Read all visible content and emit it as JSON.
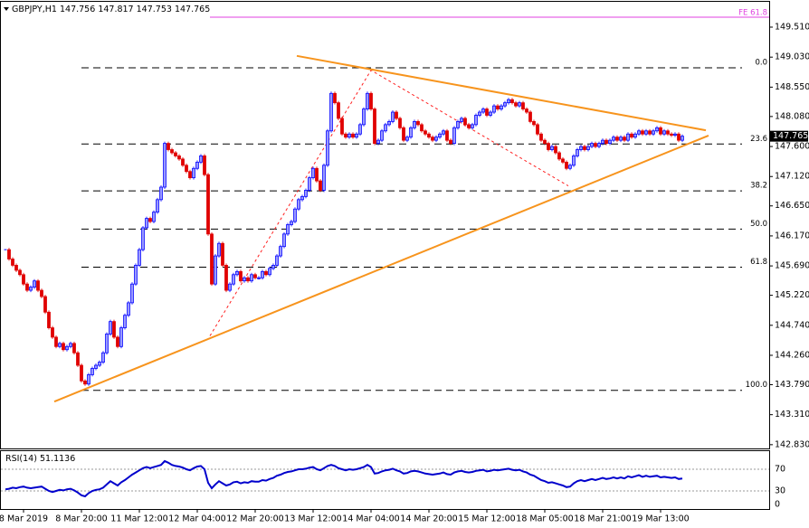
{
  "chart_data": [
    {
      "type": "candlestick",
      "symbol": "GBPJPY,H1",
      "ohlc": [
        147.756,
        147.817,
        147.753,
        147.765
      ],
      "up_color": "#0000ff",
      "down_color": "#e00000",
      "categories": [
        null,
        null,
        null,
        null,
        null,
        "8 Mar 2019",
        null,
        null,
        null,
        null,
        null,
        null,
        null,
        null,
        null,
        null,
        null,
        null,
        null,
        null,
        null,
        "8 Mar 20:00",
        null,
        null,
        null,
        null,
        null,
        null,
        null,
        null,
        null,
        null,
        null,
        null,
        null,
        null,
        null,
        "11 Mar 12:00",
        null,
        null,
        null,
        null,
        null,
        null,
        null,
        null,
        null,
        null,
        null,
        null,
        null,
        null,
        null,
        "12 Mar 04:00",
        null,
        null,
        null,
        null,
        null,
        null,
        null,
        null,
        null,
        null,
        null,
        null,
        null,
        null,
        null,
        "12 Mar 20:00",
        null,
        null,
        null,
        null,
        null,
        null,
        null,
        null,
        null,
        null,
        null,
        null,
        null,
        null,
        null,
        "13 Mar 12:00",
        null,
        null,
        null,
        null,
        null,
        null,
        null,
        null,
        null,
        null,
        null,
        null,
        null,
        null,
        null,
        "14 Mar 04:00",
        null,
        null,
        null,
        null,
        null,
        null,
        null,
        null,
        null,
        null,
        null,
        null,
        null,
        null,
        null,
        "14 Mar 20:00",
        null,
        null,
        null,
        null,
        null,
        null,
        null,
        null,
        null,
        null,
        null,
        null,
        null,
        null,
        null,
        "15 Mar 12:00",
        null,
        null,
        null,
        null,
        null,
        null,
        null,
        null,
        null,
        null,
        null,
        null,
        null,
        null,
        null,
        "18 Mar 05:00",
        null,
        null,
        null,
        null,
        null,
        null,
        null,
        null,
        null,
        null,
        null,
        null,
        null,
        null,
        null,
        "18 Mar 21:00",
        null,
        null,
        null,
        null,
        null,
        null,
        null,
        null,
        null,
        null,
        null,
        null,
        null,
        null,
        null,
        "19 Mar 13:00",
        null,
        null,
        null,
        null,
        null,
        null
      ],
      "close": [
        145.95,
        145.8,
        145.7,
        145.62,
        145.55,
        145.4,
        145.3,
        145.35,
        145.45,
        145.3,
        145.2,
        144.95,
        144.7,
        144.55,
        144.4,
        144.45,
        144.35,
        144.4,
        144.45,
        144.3,
        144.1,
        143.85,
        143.8,
        143.95,
        144.05,
        144.1,
        144.15,
        144.3,
        144.6,
        144.8,
        144.55,
        144.4,
        144.7,
        144.9,
        145.1,
        145.4,
        145.7,
        145.95,
        146.3,
        146.45,
        146.4,
        146.55,
        146.75,
        146.95,
        147.65,
        147.55,
        147.5,
        147.45,
        147.4,
        147.3,
        147.2,
        147.1,
        147.25,
        147.35,
        147.45,
        147.15,
        146.2,
        145.4,
        145.85,
        146.05,
        145.7,
        145.3,
        145.4,
        145.55,
        145.6,
        145.45,
        145.5,
        145.45,
        145.55,
        145.5,
        145.5,
        145.6,
        145.55,
        145.65,
        145.7,
        145.85,
        146.0,
        146.2,
        146.35,
        146.4,
        146.6,
        146.75,
        146.8,
        146.9,
        147.1,
        147.25,
        147.05,
        146.9,
        147.3,
        147.85,
        148.45,
        148.3,
        148.05,
        147.8,
        147.75,
        147.8,
        147.75,
        147.8,
        147.95,
        148.2,
        148.45,
        148.2,
        147.65,
        147.7,
        147.85,
        147.95,
        148.0,
        148.15,
        148.05,
        147.9,
        147.7,
        147.75,
        147.9,
        148.0,
        147.95,
        147.85,
        147.8,
        147.75,
        147.7,
        147.75,
        147.8,
        147.85,
        147.7,
        147.65,
        147.9,
        148.0,
        148.05,
        147.95,
        147.9,
        147.95,
        148.1,
        148.15,
        148.2,
        148.1,
        148.15,
        148.25,
        148.2,
        148.25,
        148.3,
        148.35,
        148.3,
        148.25,
        148.3,
        148.2,
        148.15,
        148.0,
        147.95,
        147.8,
        147.7,
        147.65,
        147.55,
        147.6,
        147.5,
        147.4,
        147.35,
        147.25,
        147.3,
        147.45,
        147.55,
        147.6,
        147.55,
        147.6,
        147.65,
        147.6,
        147.65,
        147.7,
        147.65,
        147.7,
        147.75,
        147.7,
        147.75,
        147.7,
        147.8,
        147.75,
        147.8,
        147.85,
        147.8,
        147.85,
        147.8,
        147.85,
        147.9,
        147.8,
        147.85,
        147.8,
        147.78,
        147.8,
        147.7,
        147.765
      ],
      "ylim": [
        142.77,
        149.915
      ],
      "yticks": [
        {
          "value": 149.51,
          "label": "149.510"
        },
        {
          "value": 149.03,
          "label": "149.030"
        },
        {
          "value": 148.55,
          "label": "148.550"
        },
        {
          "value": 148.08,
          "label": "148.080"
        },
        {
          "value": 147.6,
          "label": "147.600"
        },
        {
          "value": 147.12,
          "label": "147.120"
        },
        {
          "value": 146.65,
          "label": "146.650"
        },
        {
          "value": 146.17,
          "label": "146.170"
        },
        {
          "value": 145.69,
          "label": "145.690"
        },
        {
          "value": 145.22,
          "label": "145.220"
        },
        {
          "value": 144.74,
          "label": "144.740"
        },
        {
          "value": 144.26,
          "label": "144.260"
        },
        {
          "value": 143.79,
          "label": "143.790"
        },
        {
          "value": 143.31,
          "label": "143.310"
        },
        {
          "value": 142.83,
          "label": "142.830"
        }
      ],
      "trendlines": [
        {
          "color": "#f7941d",
          "points": [
            [
              80.5,
              149.05
            ],
            [
              193.5,
              147.86
            ]
          ]
        },
        {
          "color": "#f7941d",
          "points": [
            [
              13.5,
              143.52
            ],
            [
              194.25,
              147.775
            ]
          ]
        }
      ],
      "zigzag": {
        "color": "#ff2020",
        "points": [
          [
            56.5,
            144.57
          ],
          [
            101,
            148.82
          ],
          [
            155.5,
            146.97
          ]
        ]
      },
      "fib": {
        "start": 21,
        "levels": [
          {
            "label": "0.0",
            "price": 148.86
          },
          {
            "label": "23.6",
            "price": 147.64
          },
          {
            "label": "38.2",
            "price": 146.89
          },
          {
            "label": "50.0",
            "price": 146.28
          },
          {
            "label": "61.8",
            "price": 145.67
          },
          {
            "label": "100.0",
            "price": 143.7
          }
        ]
      },
      "expansion": {
        "label": "FE 61.8",
        "price": 149.67,
        "start": 56.5,
        "color": "#e040e0"
      }
    },
    {
      "type": "line",
      "name": "RSI(14)",
      "last": 51.1136,
      "color": "#0000cc",
      "values": [
        33,
        34,
        36,
        35,
        37,
        38,
        36,
        35,
        36,
        37,
        38,
        34,
        30,
        28,
        30,
        32,
        31,
        33,
        34,
        31,
        27,
        22,
        20,
        26,
        30,
        32,
        33,
        36,
        42,
        48,
        44,
        40,
        46,
        50,
        55,
        60,
        64,
        68,
        72,
        74,
        72,
        74,
        76,
        78,
        85,
        82,
        78,
        76,
        75,
        73,
        70,
        68,
        72,
        75,
        76,
        70,
        45,
        35,
        42,
        48,
        44,
        40,
        42,
        46,
        47,
        44,
        46,
        45,
        48,
        47,
        47,
        50,
        49,
        52,
        54,
        58,
        60,
        63,
        65,
        66,
        68,
        70,
        70,
        71,
        73,
        74,
        70,
        68,
        72,
        76,
        78,
        76,
        72,
        70,
        68,
        70,
        69,
        70,
        72,
        74,
        78,
        74,
        62,
        63,
        66,
        68,
        69,
        71,
        68,
        66,
        62,
        63,
        66,
        67,
        66,
        64,
        62,
        61,
        60,
        61,
        62,
        64,
        61,
        60,
        64,
        66,
        67,
        65,
        64,
        65,
        67,
        68,
        69,
        66,
        67,
        69,
        68,
        69,
        70,
        71,
        69,
        68,
        69,
        66,
        64,
        60,
        58,
        54,
        50,
        48,
        45,
        46,
        44,
        42,
        40,
        37,
        38,
        44,
        48,
        50,
        48,
        50,
        52,
        50,
        52,
        54,
        52,
        53,
        55,
        53,
        55,
        53,
        57,
        55,
        57,
        59,
        56,
        58,
        56,
        57,
        58,
        55,
        56,
        55,
        54,
        55,
        52,
        53
      ],
      "ylim": [
        0,
        100
      ],
      "yticks": [
        70,
        30,
        0
      ]
    }
  ]
}
